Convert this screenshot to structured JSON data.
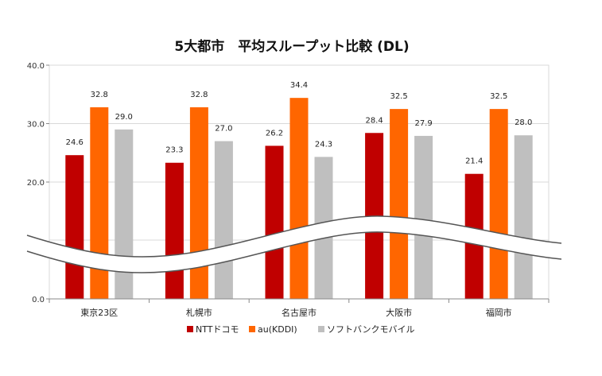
{
  "chart_data": {
    "type": "bar",
    "title": "5大都市　平均スループット比較 (DL)",
    "categories": [
      "東京23区",
      "札幌市",
      "名古屋市",
      "大阪市",
      "福岡市"
    ],
    "series": [
      {
        "name": "NTTドコモ",
        "color": "#c00000",
        "values": [
          24.6,
          23.3,
          26.2,
          28.4,
          21.4
        ]
      },
      {
        "name": "au(KDDI)",
        "color": "#ff6600",
        "values": [
          32.8,
          32.8,
          34.4,
          32.5,
          32.5
        ]
      },
      {
        "name": "ソフトバンクモバイル",
        "color": "#bfbfbf",
        "values": [
          29.0,
          27.0,
          24.3,
          27.9,
          28.0
        ]
      }
    ],
    "y_ticks": [
      "0.0",
      "20.0",
      "30.0",
      "40.0"
    ],
    "ylim": [
      0,
      40
    ],
    "axis_break": true,
    "grid": true,
    "legend_position": "bottom"
  }
}
